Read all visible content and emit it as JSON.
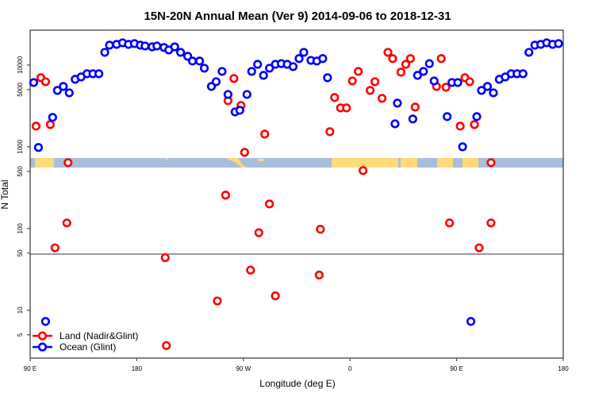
{
  "chart_data": {
    "type": "scatter",
    "title": "15N-20N Annual Mean (Ver 9)   2014-09-06 to 2018-12-31",
    "xlabel": "Longitude (deg E)",
    "ylabel": "N Total",
    "x_units": "unwrapped longitude, 90 = 90E, 180 = 180, 270 = 90W, 360 = 0, 450 = 90E, 540 = 180",
    "xlim": [
      90,
      540
    ],
    "ylim": [
      2.6,
      26700
    ],
    "yscale": "log",
    "x_ticks": [
      {
        "value": 90,
        "label": "90 E"
      },
      {
        "value": 180,
        "label": "180"
      },
      {
        "value": 270,
        "label": "90 W"
      },
      {
        "value": 360,
        "label": "0"
      },
      {
        "value": 450,
        "label": "90 E"
      },
      {
        "value": 540,
        "label": "180"
      }
    ],
    "y_ticks": [
      {
        "value": 5,
        "label": "5"
      },
      {
        "value": 10,
        "label": "10"
      },
      {
        "value": 50,
        "label": "50"
      },
      {
        "value": 100,
        "label": "100"
      },
      {
        "value": 500,
        "label": "500"
      },
      {
        "value": 1000,
        "label": "1000"
      },
      {
        "value": 5000,
        "label": "5000"
      },
      {
        "value": 10000,
        "label": "10000"
      }
    ],
    "reference_line": 50,
    "legend_position": "bottom-left",
    "series": [
      {
        "name": "Land (Nadir&Glint)",
        "color": "#ff0000",
        "points": [
          [
            95,
            1790
          ],
          [
            99,
            7000
          ],
          [
            103,
            6250
          ],
          [
            107,
            1870
          ],
          [
            122,
            640
          ],
          [
            111,
            58
          ],
          [
            121,
            117
          ],
          [
            204,
            44
          ],
          [
            205,
            3.7
          ],
          [
            248,
            13
          ],
          [
            255,
            256
          ],
          [
            257,
            3660
          ],
          [
            262,
            6840
          ],
          [
            268,
            3200
          ],
          [
            271,
            855
          ],
          [
            276,
            31
          ],
          [
            283,
            89
          ],
          [
            288,
            1430
          ],
          [
            292,
            200
          ],
          [
            297,
            15
          ],
          [
            334,
            27
          ],
          [
            335,
            98
          ],
          [
            343,
            1530
          ],
          [
            347,
            4000
          ],
          [
            352,
            2990
          ],
          [
            357,
            2990
          ],
          [
            362,
            6390
          ],
          [
            367,
            8360
          ],
          [
            371,
            512
          ],
          [
            377,
            4890
          ],
          [
            381,
            6250
          ],
          [
            387,
            3910
          ],
          [
            392,
            14300
          ],
          [
            396,
            12000
          ],
          [
            403,
            8180
          ],
          [
            407,
            10200
          ],
          [
            411,
            12000
          ],
          [
            415,
            3060
          ],
          [
            433,
            5470
          ],
          [
            437,
            12000
          ],
          [
            441,
            5350
          ],
          [
            444,
            117
          ],
          [
            453,
            1790
          ],
          [
            457,
            7000
          ],
          [
            461,
            6250
          ],
          [
            465,
            1870
          ],
          [
            469,
            58
          ],
          [
            479,
            640
          ],
          [
            479,
            117
          ]
        ]
      },
      {
        "name": "Ocean (Glint)",
        "color": "#0000ff",
        "points": [
          [
            93,
            6110
          ],
          [
            97,
            980
          ],
          [
            109,
            2290
          ],
          [
            113,
            4890
          ],
          [
            118,
            5470
          ],
          [
            123,
            4570
          ],
          [
            128,
            6690
          ],
          [
            133,
            7150
          ],
          [
            138,
            7820
          ],
          [
            143,
            7820
          ],
          [
            148,
            7820
          ],
          [
            153,
            14300
          ],
          [
            157,
            17500
          ],
          [
            163,
            17900
          ],
          [
            168,
            18700
          ],
          [
            173,
            17900
          ],
          [
            178,
            18300
          ],
          [
            183,
            17500
          ],
          [
            187,
            17100
          ],
          [
            193,
            16700
          ],
          [
            197,
            17100
          ],
          [
            203,
            16400
          ],
          [
            207,
            15300
          ],
          [
            212,
            16700
          ],
          [
            217,
            14300
          ],
          [
            223,
            12800
          ],
          [
            227,
            11200
          ],
          [
            233,
            11200
          ],
          [
            237,
            9140
          ],
          [
            243,
            5470
          ],
          [
            247,
            6250
          ],
          [
            252,
            8360
          ],
          [
            257,
            4370
          ],
          [
            263,
            2670
          ],
          [
            267,
            2800
          ],
          [
            273,
            4370
          ],
          [
            277,
            8360
          ],
          [
            282,
            10200
          ],
          [
            287,
            7480
          ],
          [
            292,
            9140
          ],
          [
            297,
            10200
          ],
          [
            302,
            10400
          ],
          [
            307,
            10200
          ],
          [
            312,
            9560
          ],
          [
            317,
            12000
          ],
          [
            321,
            14300
          ],
          [
            327,
            11400
          ],
          [
            332,
            11200
          ],
          [
            337,
            12000
          ],
          [
            341,
            7000
          ],
          [
            398,
            1910
          ],
          [
            400,
            3420
          ],
          [
            413,
            2190
          ],
          [
            417,
            7480
          ],
          [
            422,
            8360
          ],
          [
            427,
            10400
          ],
          [
            431,
            6390
          ],
          [
            442,
            2340
          ],
          [
            446,
            6110
          ],
          [
            451,
            6110
          ],
          [
            455,
            1000
          ],
          [
            467,
            2340
          ],
          [
            471,
            4890
          ],
          [
            476,
            5470
          ],
          [
            481,
            4570
          ],
          [
            486,
            6690
          ],
          [
            491,
            7150
          ],
          [
            496,
            7820
          ],
          [
            501,
            7820
          ],
          [
            506,
            7820
          ],
          [
            511,
            14300
          ],
          [
            516,
            17500
          ],
          [
            521,
            17900
          ],
          [
            526,
            18700
          ],
          [
            531,
            17900
          ],
          [
            536,
            18300
          ],
          [
            103,
            7.3
          ],
          [
            462,
            7.3
          ]
        ]
      }
    ]
  }
}
